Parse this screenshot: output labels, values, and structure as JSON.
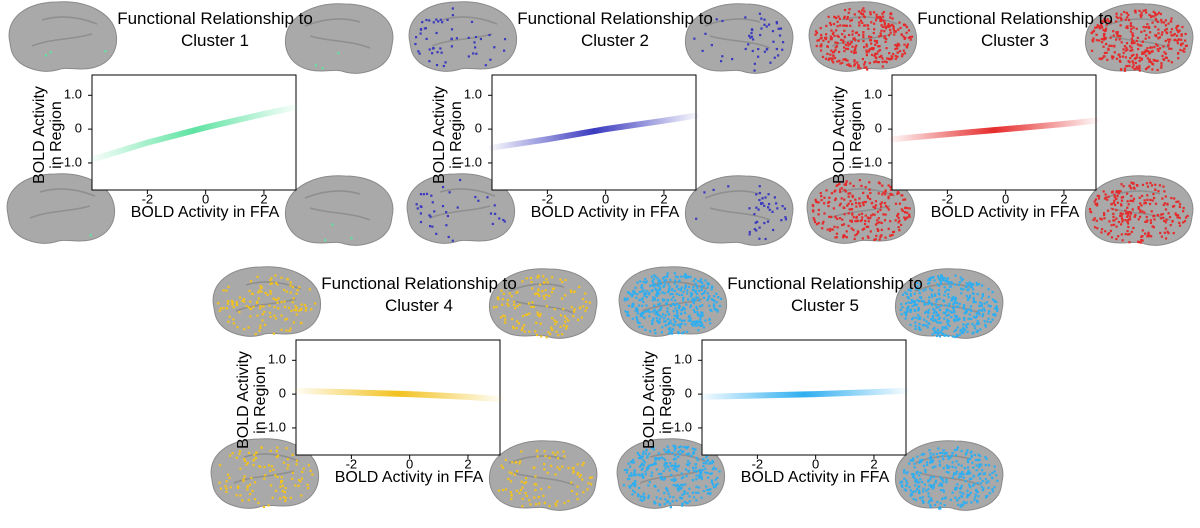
{
  "chart_data": [
    {
      "type": "line",
      "title": "Functional Relationship to Cluster 1",
      "xlabel": "BOLD Activity in FFA",
      "ylabel": "BOLD Activity in Region",
      "x": [
        -3.9,
        -2,
        0,
        2,
        3.1
      ],
      "values": [
        -0.9,
        -0.4,
        0.05,
        0.45,
        0.65
      ],
      "color": "#5ee3a2",
      "xlim": [
        -3.9,
        3.1
      ],
      "ylim": [
        -1.8,
        1.6
      ],
      "xticks": [
        -2,
        0,
        2
      ],
      "yticks": [
        {
          "value": 1,
          "label": "1.0"
        },
        0,
        {
          "value": -1,
          "label": "-1.0"
        }
      ]
    },
    {
      "type": "line",
      "title": "Functional Relationship to Cluster 2",
      "xlabel": "BOLD Activity in FFA",
      "ylabel": "BOLD Activity in Region",
      "x": [
        -3.9,
        -2,
        0,
        2,
        3.1
      ],
      "values": [
        -0.55,
        -0.3,
        0.0,
        0.25,
        0.4
      ],
      "color": "#3a3abf",
      "xlim": [
        -3.9,
        3.1
      ],
      "ylim": [
        -1.8,
        1.6
      ],
      "xticks": [
        -2,
        0,
        2
      ],
      "yticks": [
        {
          "value": 1,
          "label": "1.0"
        },
        0,
        {
          "value": -1,
          "label": "-1.0"
        }
      ]
    },
    {
      "type": "line",
      "title": "Functional Relationship to Cluster 3",
      "xlabel": "BOLD Activity in FFA",
      "ylabel": "BOLD Activity in Region",
      "x": [
        -3.9,
        -2,
        0,
        2,
        3.1
      ],
      "values": [
        -0.3,
        -0.15,
        0.0,
        0.15,
        0.25
      ],
      "color": "#e52b2b",
      "xlim": [
        -3.9,
        3.1
      ],
      "ylim": [
        -1.8,
        1.6
      ],
      "xticks": [
        -2,
        0,
        2
      ],
      "yticks": [
        {
          "value": 1,
          "label": "1.0"
        },
        0,
        {
          "value": -1,
          "label": "-1.0"
        }
      ]
    },
    {
      "type": "line",
      "title": "Functional Relationship to Cluster 4",
      "xlabel": "BOLD Activity in FFA",
      "ylabel": "BOLD Activity in Region",
      "x": [
        -3.9,
        -2,
        0,
        2,
        3.1
      ],
      "values": [
        0.1,
        0.05,
        0.0,
        -0.08,
        -0.15
      ],
      "color": "#f2c21f",
      "xlim": [
        -3.9,
        3.1
      ],
      "ylim": [
        -1.8,
        1.6
      ],
      "xticks": [
        -2,
        0,
        2
      ],
      "yticks": [
        {
          "value": 1,
          "label": "1.0"
        },
        0,
        {
          "value": -1,
          "label": "-1.0"
        }
      ]
    },
    {
      "type": "line",
      "title": "Functional Relationship to Cluster 5",
      "xlabel": "BOLD Activity in FFA",
      "ylabel": "BOLD Activity in Region",
      "x": [
        -3.9,
        -2,
        0,
        2,
        3.1
      ],
      "values": [
        -0.08,
        -0.04,
        0.0,
        0.06,
        0.1
      ],
      "color": "#2eaef0",
      "xlim": [
        -3.9,
        3.1
      ],
      "ylim": [
        -1.8,
        1.6
      ],
      "xticks": [
        -2,
        0,
        2
      ],
      "yticks": [
        {
          "value": 1,
          "label": "1.0"
        },
        0,
        {
          "value": -1,
          "label": "-1.0"
        }
      ]
    }
  ]
}
